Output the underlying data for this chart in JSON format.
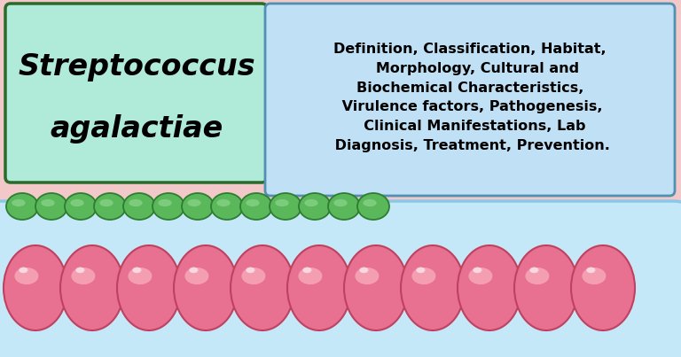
{
  "bg_color": "#f2c8c8",
  "title_box_bg": "#b0ead8",
  "title_box_edge": "#2a6a2a",
  "title_text_line1": "Streptococcus",
  "title_text_line2": "agalactiae",
  "info_box_bg": "#c0e0f5",
  "info_box_edge": "#5090b0",
  "info_text": "Definition, Classification, Habitat,\n   Morphology, Cultural and\nBiochemical Characteristics,\n Virulence factors, Pathogenesis,\n  Clinical Manifestations, Lab\n Diagnosis, Treatment, Prevention.",
  "small_cell_color": "#5ab85a",
  "small_cell_edge": "#2e7d32",
  "small_cell_highlight": "#90d890",
  "large_cell_color": "#e87090",
  "large_cell_mid": "#d05878",
  "large_cell_edge": "#c04060",
  "large_cell_highlight": "#f8aabb",
  "capsule_color": "#c5e8f8",
  "capsule_edge": "#88c8e8",
  "n_small_cells": 13,
  "n_large_cells": 11
}
